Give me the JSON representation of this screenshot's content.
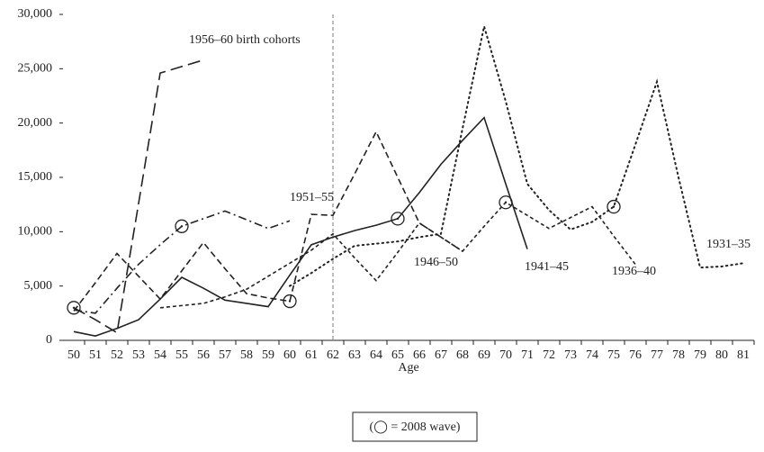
{
  "chart_data": {
    "type": "line",
    "x_label": "Age",
    "x": [
      50,
      51,
      52,
      53,
      54,
      55,
      56,
      57,
      58,
      59,
      60,
      61,
      62,
      63,
      64,
      65,
      66,
      67,
      68,
      69,
      70,
      71,
      72,
      73,
      74,
      75,
      76,
      77,
      78,
      79,
      80,
      81
    ],
    "xlim": [
      50,
      81
    ],
    "xticks": [
      50,
      51,
      52,
      53,
      54,
      55,
      56,
      57,
      58,
      59,
      60,
      61,
      62,
      63,
      64,
      65,
      66,
      67,
      68,
      69,
      70,
      71,
      72,
      73,
      74,
      75,
      76,
      77,
      78,
      79,
      80,
      81
    ],
    "ylim": [
      0,
      30000
    ],
    "yticks": [
      0,
      {
        "value": 5000,
        "label": "5,000"
      },
      {
        "value": 10000,
        "label": "10,000"
      },
      {
        "value": 15000,
        "label": "15,000"
      },
      {
        "value": 20000,
        "label": "20,000"
      },
      {
        "value": 25000,
        "label": "25,000"
      },
      {
        "value": 30000,
        "label": "30,000"
      }
    ],
    "reference_x": 62,
    "series": [
      {
        "name": "1956–60 birth cohorts",
        "color": "#222222",
        "style": "long-dash",
        "values": [
          3000,
          1900,
          700,
          12600,
          24600,
          25200,
          25800,
          null,
          null,
          null,
          null,
          null,
          null,
          null,
          null,
          null,
          null,
          null,
          null,
          null,
          null,
          null,
          null,
          null,
          null,
          null,
          null,
          null,
          null,
          null,
          null,
          null
        ]
      },
      {
        "name": "1951–55",
        "color": "#222222",
        "style": "dash-dot",
        "values": [
          2800,
          2500,
          4800,
          7000,
          8800,
          10500,
          11200,
          11900,
          11100,
          10300,
          11000,
          null,
          null,
          null,
          null,
          null,
          null,
          null,
          null,
          null,
          null,
          null,
          null,
          null,
          null,
          null,
          null,
          null,
          null,
          null,
          null,
          null
        ]
      },
      {
        "name": "1946–50",
        "color": "#222222",
        "style": "dashed",
        "values": [
          2700,
          5300,
          8000,
          5900,
          3800,
          6400,
          9000,
          6600,
          4300,
          3900,
          3600,
          11600,
          11500,
          15300,
          19200,
          15000,
          10800,
          9500,
          8200,
          null,
          null,
          null,
          null,
          null,
          null,
          null,
          null,
          null,
          null,
          null,
          null,
          null
        ]
      },
      {
        "name": "1941–45",
        "color": "#222222",
        "style": "solid",
        "values": [
          800,
          400,
          1100,
          1900,
          3800,
          5800,
          4800,
          3700,
          3400,
          3100,
          6000,
          8800,
          9500,
          10100,
          10600,
          11200,
          13600,
          16200,
          18400,
          20500,
          14400,
          8400,
          null,
          null,
          null,
          null,
          null,
          null,
          null,
          null,
          null,
          null
        ]
      },
      {
        "name": "1936–40",
        "color": "#222222",
        "style": "short-dash",
        "values": [
          null,
          null,
          null,
          null,
          3000,
          3200,
          3400,
          4000,
          4700,
          5900,
          7100,
          8300,
          9800,
          7600,
          5500,
          8100,
          10800,
          9500,
          8200,
          10500,
          12700,
          11500,
          10300,
          11300,
          12300,
          9600,
          7000,
          null,
          null,
          null,
          null,
          null
        ]
      },
      {
        "name": "1931–35",
        "color": "#222222",
        "style": "dotted",
        "values": [
          null,
          null,
          null,
          null,
          null,
          null,
          null,
          null,
          null,
          null,
          5000,
          6200,
          7500,
          8700,
          8900,
          9100,
          9500,
          9800,
          19500,
          28900,
          22000,
          14400,
          12000,
          10200,
          10900,
          12300,
          18000,
          23800,
          15000,
          6700,
          6800,
          7100
        ]
      }
    ],
    "markers": {
      "name": "(◯ = 2008 wave)",
      "x": [
        50,
        55,
        60,
        65,
        70,
        75
      ],
      "values": [
        3000,
        10500,
        3600,
        11200,
        12700,
        12300
      ]
    }
  }
}
